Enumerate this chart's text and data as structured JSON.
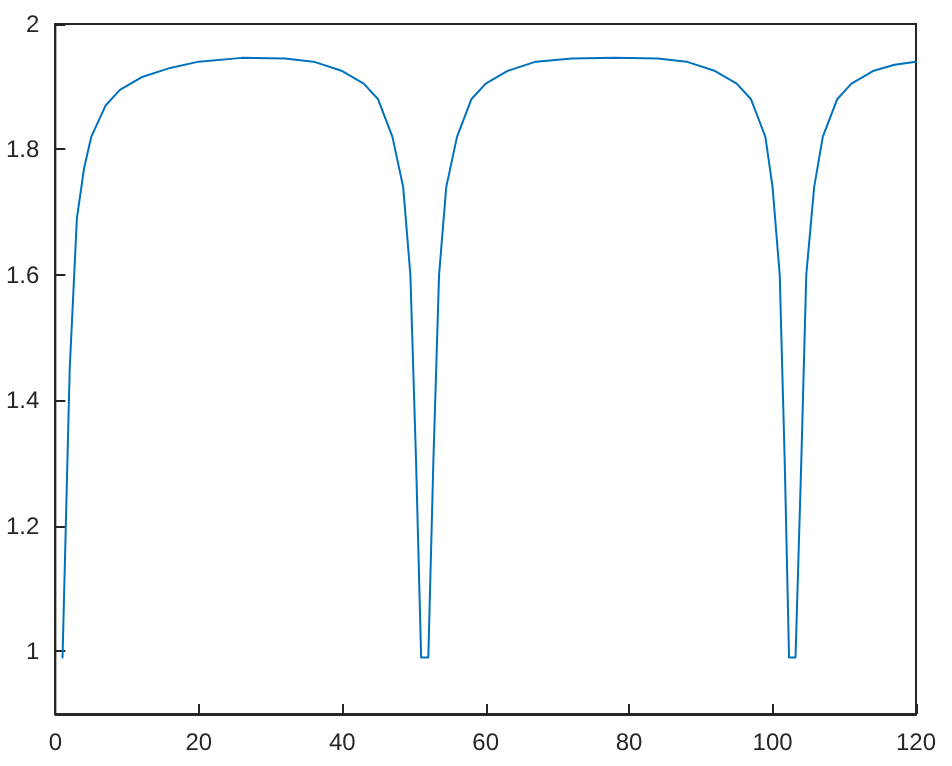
{
  "chart_data": {
    "type": "line",
    "xlim": [
      0,
      120
    ],
    "xticks": [
      0,
      20,
      40,
      60,
      80,
      100,
      120
    ],
    "ylim": [
      0.9,
      2
    ],
    "yticks": [
      1,
      1.2,
      1.4,
      1.6,
      1.8,
      2
    ],
    "grid": false,
    "marker": "none",
    "line_style": "solid",
    "series": [
      {
        "color": "#0072bd",
        "x": [
          1,
          2,
          3,
          4,
          5,
          7,
          9,
          12,
          16,
          20,
          26,
          32,
          36,
          40,
          43,
          45,
          47,
          48.5,
          49.5,
          50.3,
          51,
          52,
          52.7,
          53.5,
          54.5,
          56,
          58,
          60,
          63,
          67,
          72,
          78,
          84,
          88,
          92,
          95,
          97,
          99,
          100,
          101,
          101.7,
          102.3,
          103.2,
          104,
          104.7,
          105.8,
          107,
          109,
          111,
          114,
          117,
          120
        ],
        "values": [
          0.99,
          1.45,
          1.69,
          1.77,
          1.82,
          1.87,
          1.895,
          1.915,
          1.93,
          1.94,
          1.946,
          1.945,
          1.94,
          1.925,
          1.905,
          1.88,
          1.82,
          1.74,
          1.6,
          1.3,
          0.99,
          0.99,
          1.3,
          1.6,
          1.74,
          1.82,
          1.88,
          1.905,
          1.925,
          1.94,
          1.945,
          1.946,
          1.945,
          1.94,
          1.925,
          1.905,
          1.88,
          1.82,
          1.74,
          1.6,
          1.3,
          0.99,
          0.99,
          1.3,
          1.6,
          1.74,
          1.82,
          1.88,
          1.905,
          1.925,
          1.935,
          1.94
        ]
      }
    ]
  }
}
